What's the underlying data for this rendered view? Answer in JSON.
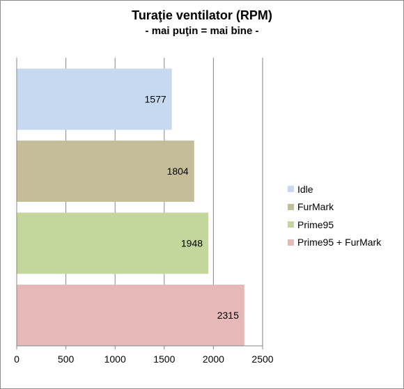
{
  "chart_data": {
    "type": "bar",
    "orientation": "horizontal",
    "title": "Turaţie ventilator (RPM)",
    "subtitle": "- mai puţin = mai bine -",
    "series": [
      {
        "name": "Idle",
        "value": 1577,
        "color": "#c6d9f1"
      },
      {
        "name": "FurMark",
        "value": 1804,
        "color": "#c4bd97"
      },
      {
        "name": "Prime95",
        "value": 1948,
        "color": "#c3d69b"
      },
      {
        "name": "Prime95 + FurMark",
        "value": 2315,
        "color": "#e6b9b8"
      }
    ],
    "xlim": [
      0,
      2500
    ],
    "xticks": [
      "0",
      "500",
      "1000",
      "1500",
      "2000",
      "2500"
    ],
    "grid": true,
    "legend_position": "right"
  }
}
